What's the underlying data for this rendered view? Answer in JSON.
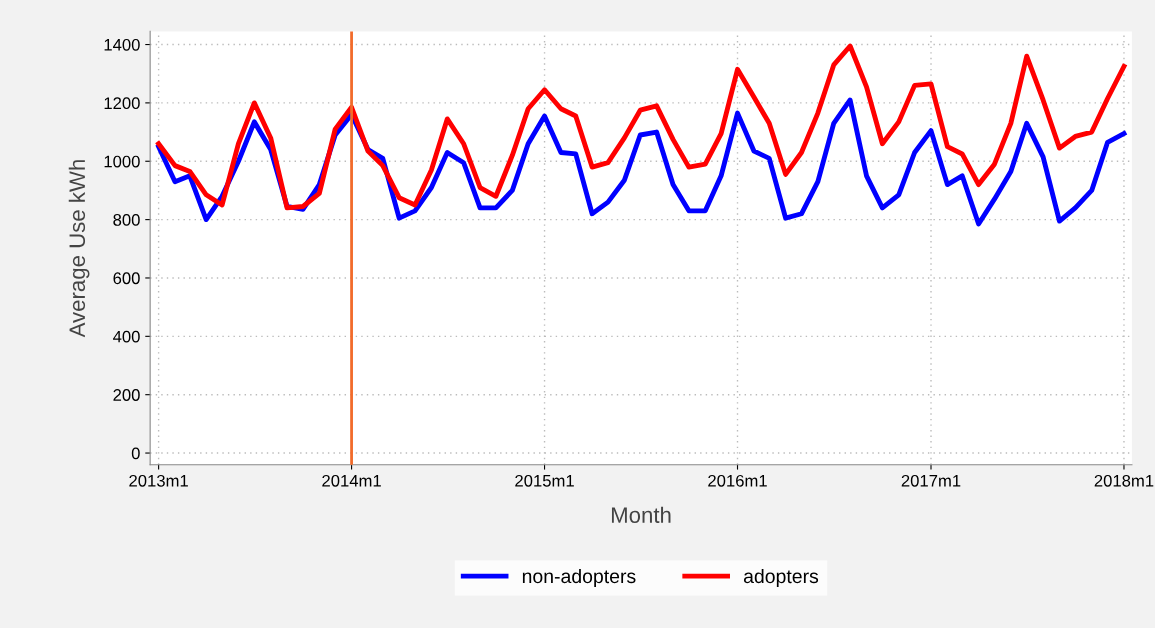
{
  "chart_data": {
    "type": "line",
    "xlabel": "Month",
    "ylabel": "Average Use kWh",
    "x": [
      "2013-01",
      "2013-02",
      "2013-03",
      "2013-04",
      "2013-05",
      "2013-06",
      "2013-07",
      "2013-08",
      "2013-09",
      "2013-10",
      "2013-11",
      "2013-12",
      "2014-01",
      "2014-02",
      "2014-03",
      "2014-04",
      "2014-05",
      "2014-06",
      "2014-07",
      "2014-08",
      "2014-09",
      "2014-10",
      "2014-11",
      "2014-12",
      "2015-01",
      "2015-02",
      "2015-03",
      "2015-04",
      "2015-05",
      "2015-06",
      "2015-07",
      "2015-08",
      "2015-09",
      "2015-10",
      "2015-11",
      "2015-12",
      "2016-01",
      "2016-02",
      "2016-03",
      "2016-04",
      "2016-05",
      "2016-06",
      "2016-07",
      "2016-08",
      "2016-09",
      "2016-10",
      "2016-11",
      "2016-12",
      "2017-01",
      "2017-02",
      "2017-03",
      "2017-04",
      "2017-05",
      "2017-06",
      "2017-07",
      "2017-08",
      "2017-09",
      "2017-10",
      "2017-11",
      "2017-12",
      "2018-01"
    ],
    "series": [
      {
        "name": "non-adopters",
        "color": "#0000ff",
        "values": [
          1050,
          930,
          950,
          800,
          880,
          1000,
          1135,
          1040,
          845,
          835,
          920,
          1090,
          1160,
          1040,
          1010,
          805,
          830,
          910,
          1030,
          995,
          840,
          840,
          900,
          1060,
          1155,
          1030,
          1025,
          820,
          860,
          935,
          1090,
          1100,
          920,
          830,
          830,
          950,
          1165,
          1035,
          1010,
          805,
          820,
          930,
          1130,
          1210,
          950,
          840,
          885,
          1030,
          1105,
          920,
          950,
          785,
          870,
          965,
          1130,
          1015,
          795,
          840,
          900,
          1065,
          1095
        ]
      },
      {
        "name": "adopters",
        "color": "#ff0000",
        "values": [
          1060,
          985,
          965,
          885,
          850,
          1060,
          1200,
          1080,
          840,
          845,
          890,
          1110,
          1185,
          1035,
          985,
          875,
          850,
          970,
          1145,
          1060,
          910,
          880,
          1020,
          1180,
          1245,
          1180,
          1155,
          980,
          995,
          1080,
          1175,
          1190,
          1075,
          980,
          990,
          1095,
          1315,
          1220,
          1130,
          955,
          1030,
          1165,
          1330,
          1395,
          1255,
          1060,
          1135,
          1260,
          1265,
          1050,
          1025,
          920,
          990,
          1130,
          1360,
          1210,
          1045,
          1085,
          1100,
          1215,
          1325
        ]
      }
    ],
    "xlim": [
      "2012-12-16",
      "2018-01-16"
    ],
    "xticks": [
      {
        "value": "2013-01",
        "label": "2013m1"
      },
      {
        "value": "2014-01",
        "label": "2014m1"
      },
      {
        "value": "2015-01",
        "label": "2015m1"
      },
      {
        "value": "2016-01",
        "label": "2016m1"
      },
      {
        "value": "2017-01",
        "label": "2017m1"
      },
      {
        "value": "2018-01",
        "label": "2018m1"
      }
    ],
    "ylim": [
      -40,
      1445
    ],
    "yticks": [
      0,
      200,
      400,
      600,
      800,
      1000,
      1200,
      1400
    ],
    "ref_lines": [
      {
        "axis": "x",
        "value": "2014-01",
        "color": "#f26b2a",
        "line_style": "solid"
      }
    ],
    "grid": true,
    "legend": "bottom",
    "marker": "none",
    "line_style": "solid"
  }
}
